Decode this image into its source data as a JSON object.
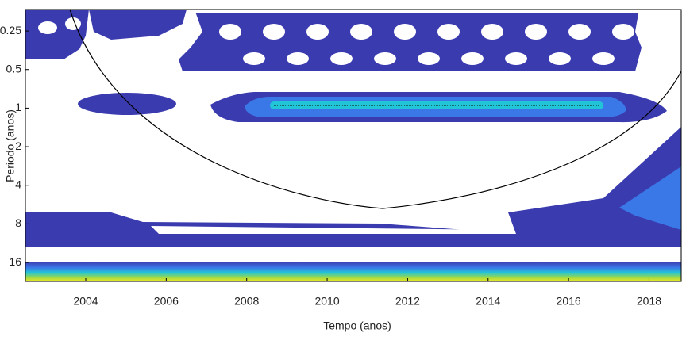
{
  "chart_data": {
    "type": "wavelet",
    "x_label": "Tempo (anos)",
    "y_label": "Periodo (anos)",
    "xlim": [
      2002.5,
      2018.8
    ],
    "xticks": [
      2004,
      2006,
      2008,
      2010,
      2012,
      2014,
      2016,
      2018
    ],
    "ylim": [
      0.17,
      22.5
    ],
    "yticks": [
      0.25,
      0.5,
      1,
      2,
      4,
      8,
      16
    ],
    "y_scale": "log",
    "y_reversed": true
  }
}
